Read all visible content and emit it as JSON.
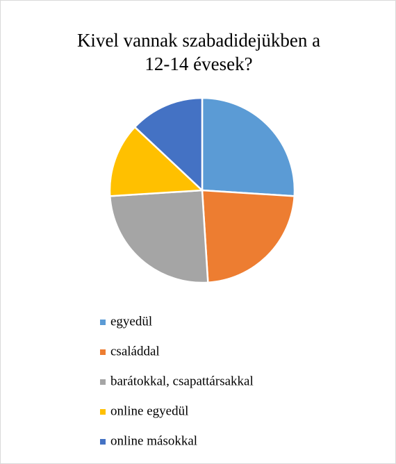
{
  "chart_data": {
    "type": "pie",
    "title": "Kivel vannak szabadidejükben a 12-14 évesek?",
    "categories": [
      "egyedül",
      "családdal",
      "barátokkal, csapattársakkal",
      "online egyedül",
      "online másokkal"
    ],
    "values": [
      26,
      23,
      25,
      13,
      13
    ],
    "colors": [
      "#5b9bd5",
      "#ed7d31",
      "#a5a5a5",
      "#ffc000",
      "#4472c4"
    ],
    "legend": "bottom"
  }
}
